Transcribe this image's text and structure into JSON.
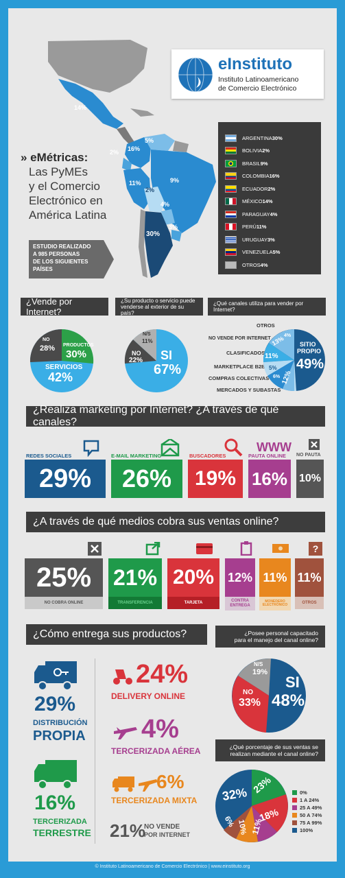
{
  "header": {
    "logo_brand": "eInstituto",
    "logo_sub1": "Instituto Latinoamericano",
    "logo_sub2": "de Comercio Electrónico",
    "title_prefix": "» eMétricas:",
    "title_lines": [
      "Las PyMEs",
      "y el Comercio",
      "Electrónico en",
      "América Latina"
    ],
    "study_line1": "ESTUDIO REALIZADO",
    "study_line2a": "A ",
    "study_line2b": "985 PERSONAS",
    "study_line3": "DE LOS SIGUIENTES",
    "study_line4": "PAÍSES"
  },
  "map": {
    "labels": [
      "14%",
      "16%",
      "5%",
      "2%",
      "9%",
      "11%",
      "2%",
      "4%",
      "3%",
      "30%"
    ]
  },
  "countries": [
    {
      "name": "ARGENTINA",
      "pct": "30%"
    },
    {
      "name": "BOLIVIA",
      "pct": "2%"
    },
    {
      "name": "BRASIL",
      "pct": "9%"
    },
    {
      "name": "COLOMBIA",
      "pct": "16%"
    },
    {
      "name": "ECUADOR",
      "pct": "2%"
    },
    {
      "name": "MÉXICO",
      "pct": "14%"
    },
    {
      "name": "PARAGUAY",
      "pct": "4%"
    },
    {
      "name": "PERÚ",
      "pct": "11%"
    },
    {
      "name": "URUGUAY",
      "pct": "3%"
    },
    {
      "name": "VENEZUELA",
      "pct": "5%"
    },
    {
      "name": "OTROS",
      "pct": "4%"
    }
  ],
  "q1": {
    "question": "¿Vende por Internet?",
    "no_label": "NO",
    "no_pct": "28%",
    "productos_label": "PRODUCTOS",
    "productos_pct": "30%",
    "servicios_label": "SERVICIOS",
    "servicios_pct": "42%"
  },
  "q2": {
    "question_line1": "¿Su producto o servicio puede",
    "question_line2": "venderse al exterior de su país?",
    "ns_label": "N/S",
    "ns_pct": "11%",
    "no_label": "NO",
    "no_pct": "22%",
    "si_label": "SI",
    "si_pct": "67%"
  },
  "q3": {
    "question": "¿Qué canales utiliza para vender por Internet?",
    "labels": [
      "OTROS",
      "NO VENDE POR INTERNET",
      "CLASIFICADOS",
      "MARKETPLACE B2B",
      "COMPRAS COLECTIVAS",
      "MERCADOS Y SUBASTAS"
    ],
    "slice_pcts": [
      "13%",
      "11%",
      "5%",
      "12%",
      "6%",
      "4%"
    ],
    "main_label1": "SITIO",
    "main_label2": "PROPIO",
    "main_pct": "49%"
  },
  "marketing": {
    "title": "¿Realiza marketing por Internet? ¿A través de qué canales?",
    "items": [
      {
        "label": "REDES SOCIALES",
        "pct": "29%",
        "color": "#1b5a8e"
      },
      {
        "label": "E-MAIL MARKETING",
        "pct": "26%",
        "color": "#1f9a4a"
      },
      {
        "label": "BUSCADORES",
        "pct": "19%",
        "color": "#d9343b"
      },
      {
        "label": "PAUTA ONLINE",
        "www": "WWW",
        "pct": "16%",
        "color": "#a63e8f"
      },
      {
        "label": "NO PAUTA",
        "pct": "10%",
        "color": "#555555"
      }
    ]
  },
  "cobro": {
    "title": "¿A través de qué medios cobra sus ventas online?",
    "items": [
      {
        "label": "NO COBRA ONLINE",
        "pct": "25%",
        "color": "#555555",
        "sub": "#c9c9c9"
      },
      {
        "label": "TRANSFERENCIA",
        "pct": "21%",
        "color": "#1f9a4a",
        "sub": "#137a35"
      },
      {
        "label": "TARJETA",
        "pct": "20%",
        "color": "#d9343b",
        "sub": "#b51f26"
      },
      {
        "label": "CONTRA ENTREGA",
        "pct": "12%",
        "color": "#a63e8f",
        "sub": "#d9c7d6"
      },
      {
        "label": "MONEDERO ELECTRÓNICO",
        "pct": "11%",
        "color": "#e8871e",
        "sub": "#f2d7b0"
      },
      {
        "label": "OTROS",
        "pct": "11%",
        "color": "#a0523d",
        "sub": "#d9c0b7"
      }
    ]
  },
  "entrega": {
    "title": "¿Cómo entrega sus productos?",
    "distribucion_pct": "29%",
    "distribucion_l1": "DISTRIBUCIÓN",
    "distribucion_l2": "PROPIA",
    "terrestre_pct": "16%",
    "terrestre_l1": "TERCERIZADA",
    "terrestre_l2": "TERRESTRE",
    "delivery_pct": "24%",
    "delivery_label": "DELIVERY ONLINE",
    "aerea_pct": "4%",
    "aerea_label": "TERCERIZADA AÉREA",
    "mixta_pct": "6%",
    "mixta_label": "TERCERIZADA MIXTA",
    "novende_pct": "21%",
    "novende_l1": "NO VENDE",
    "novende_l2": "POR INTERNET"
  },
  "personal": {
    "question_line1": "¿Posee personal capacitado",
    "question_line2": "para el manejo del canal online?",
    "ns_label": "N/S",
    "ns_pct": "19%",
    "no_label": "NO",
    "no_pct": "33%",
    "si_label": "SI",
    "si_pct": "48%"
  },
  "porcentaje": {
    "question_line1": "¿Qué porcentaje de sus ventas se",
    "question_line2": "realizan mediante el canal online?",
    "slice_pcts": [
      "23%",
      "18%",
      "11%",
      "10%",
      "6%",
      "32%"
    ],
    "legend": [
      {
        "label": "0%",
        "color": "#1f9a4a"
      },
      {
        "label": "1 A 24%",
        "color": "#d9343b"
      },
      {
        "label": "25 A 49%",
        "color": "#a63e8f"
      },
      {
        "label": "50 A 74%",
        "color": "#e8871e"
      },
      {
        "label": "75 A 99%",
        "color": "#a0523d"
      },
      {
        "label": "100%",
        "color": "#1b5a8e"
      }
    ]
  },
  "footer": "© Instituto Latinoamericano de Comercio Electrónico | www.einstituto.org"
}
